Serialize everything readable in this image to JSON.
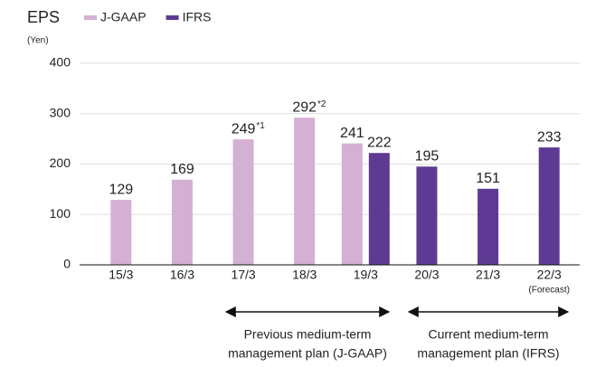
{
  "chart_data": {
    "type": "bar",
    "title": "EPS",
    "y_label": "(Yen)",
    "categories": [
      "15/3",
      "16/3",
      "17/3",
      "18/3",
      "19/3",
      "20/3",
      "21/3",
      "22/3"
    ],
    "category_notes": [
      null,
      null,
      null,
      null,
      null,
      null,
      null,
      "(Forecast)"
    ],
    "series": [
      {
        "name": "J-GAAP",
        "color": "#d4b0d4",
        "values": [
          129,
          169,
          249,
          292,
          241,
          null,
          null,
          null
        ],
        "notes": [
          null,
          null,
          "*1",
          "*2",
          null,
          null,
          null,
          null
        ]
      },
      {
        "name": "IFRS",
        "color": "#5e3a94",
        "values": [
          null,
          null,
          null,
          null,
          222,
          195,
          151,
          233
        ]
      }
    ],
    "ylim": [
      0,
      400
    ],
    "yticks": [
      0,
      100,
      200,
      300,
      400
    ],
    "grid": true,
    "annotations": [
      {
        "lines": [
          "Previous medium-term",
          "management plan (J-GAAP)"
        ]
      },
      {
        "lines": [
          "Current medium-term",
          "management plan (IFRS)"
        ]
      }
    ]
  }
}
